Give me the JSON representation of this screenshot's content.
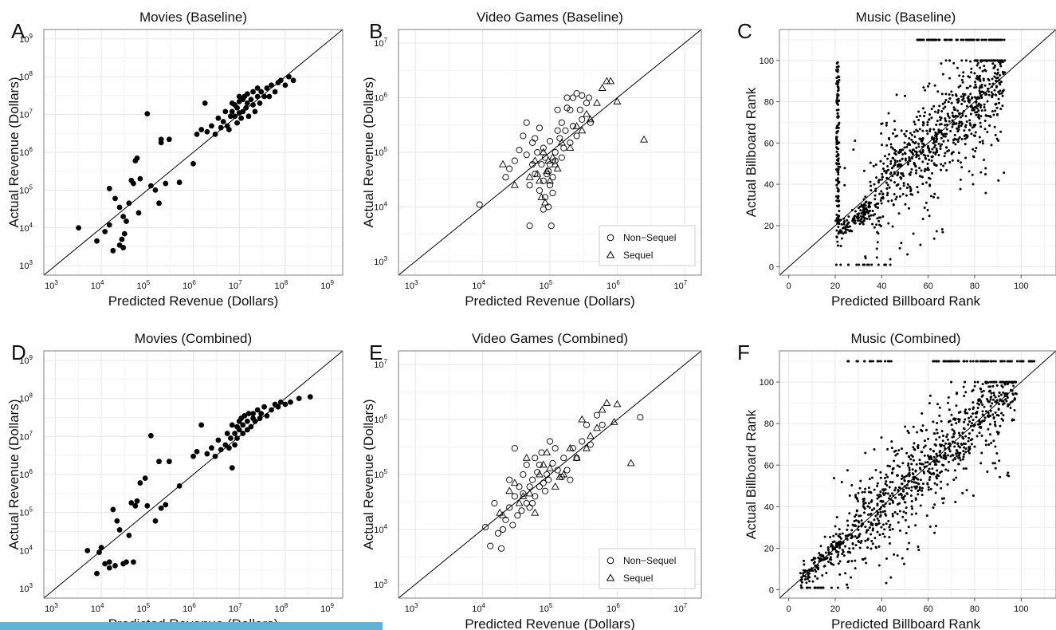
{
  "accent_bar_color": "#5fb3d8",
  "chart_data": [
    {
      "letter": "A",
      "type": "scatter",
      "title": "Movies (Baseline)",
      "xlabel": "Predicted Revenue (Dollars)",
      "ylabel": "Actual Revenue (Dollars)",
      "xscale": "log",
      "yscale": "log",
      "xlim": [
        1000,
        1000000000
      ],
      "ylim": [
        1000,
        1000000000
      ],
      "grid": true,
      "identity_line": true,
      "marker": "filled-circle",
      "series": [
        {
          "x": [
            3200,
            8000,
            12000,
            15000,
            15000,
            18000,
            20000,
            25000,
            25000,
            28000,
            30000,
            30000,
            32000,
            35000,
            40000,
            45000,
            50000,
            55000,
            60000,
            65000,
            70000,
            100000,
            120000,
            150000,
            180000,
            200000,
            200000,
            250000,
            300000,
            500000,
            1000000,
            1200000,
            1500000,
            1800000,
            2000000,
            2500000,
            3000000,
            3500000,
            4000000,
            4500000,
            5000000,
            5500000,
            6000000,
            6500000,
            7000000,
            7000000,
            8000000,
            8000000,
            9000000,
            9000000,
            10000000,
            10000000,
            10000000,
            11000000,
            12000000,
            12000000,
            13000000,
            14000000,
            15000000,
            15000000,
            16000000,
            18000000,
            20000000,
            20000000,
            22000000,
            25000000,
            25000000,
            28000000,
            30000000,
            35000000,
            40000000,
            45000000,
            50000000,
            60000000,
            70000000,
            80000000,
            100000000,
            120000000,
            150000000
          ],
          "y": [
            10000,
            4500,
            8000,
            12000,
            110000,
            2500,
            60000,
            35000,
            3500,
            5000,
            20000,
            3000,
            7000,
            15000,
            45000,
            180000,
            150000,
            600000,
            700000,
            25000,
            200000,
            10500000,
            130000,
            100000,
            45000,
            1800000,
            2200000,
            150000,
            2200000,
            160000,
            500000,
            3000000,
            4000000,
            20000000,
            3500000,
            5000000,
            3000000,
            8000000,
            4500000,
            6500000,
            12000000,
            5000000,
            4000000,
            9000000,
            12000000,
            20000000,
            18000000,
            9000000,
            15000000,
            6000000,
            22000000,
            30000000,
            11000000,
            8000000,
            25000000,
            12000000,
            30000000,
            15000000,
            20000000,
            35000000,
            9000000,
            25000000,
            40000000,
            18000000,
            12000000,
            30000000,
            50000000,
            20000000,
            40000000,
            30000000,
            50000000,
            30000000,
            60000000,
            40000000,
            70000000,
            80000000,
            60000000,
            100000000,
            80000000
          ]
        }
      ]
    },
    {
      "letter": "B",
      "type": "scatter",
      "title": "Video Games (Baseline)",
      "xlabel": "Predicted Revenue (Dollars)",
      "ylabel": "Actual Revenue (Dollars)",
      "xscale": "log",
      "yscale": "log",
      "xlim": [
        1000,
        10000000
      ],
      "ylim": [
        1000,
        10000000
      ],
      "grid": true,
      "identity_line": true,
      "legend": "bottom-right",
      "series": [
        {
          "name": "Non−Sequel",
          "marker": "open-circle",
          "x": [
            9000,
            22000,
            25000,
            30000,
            35000,
            40000,
            45000,
            45000,
            50000,
            50000,
            55000,
            55000,
            60000,
            60000,
            65000,
            70000,
            70000,
            75000,
            80000,
            80000,
            80000,
            85000,
            85000,
            90000,
            95000,
            95000,
            100000,
            100000,
            100000,
            105000,
            110000,
            110000,
            120000,
            120000,
            130000,
            130000,
            140000,
            150000,
            150000,
            160000,
            170000,
            180000,
            180000,
            200000,
            200000,
            220000,
            220000,
            250000,
            250000,
            280000,
            300000,
            300000,
            350000,
            380000,
            400000
          ],
          "y": [
            11000,
            35000,
            50000,
            70000,
            110000,
            200000,
            90000,
            350000,
            25000,
            4500,
            60000,
            150000,
            40000,
            180000,
            100000,
            20000,
            280000,
            60000,
            30000,
            120000,
            9000,
            15000,
            80000,
            40000,
            10000,
            45000,
            60000,
            25000,
            160000,
            4500,
            18000,
            35000,
            70000,
            100000,
            250000,
            600000,
            180000,
            80000,
            350000,
            120000,
            250000,
            650000,
            1000000,
            150000,
            600000,
            1000000,
            300000,
            200000,
            1200000,
            600000,
            400000,
            1100000,
            800000,
            1000000,
            350000
          ]
        },
        {
          "name": "Sequel",
          "marker": "open-triangle",
          "x": [
            20000,
            30000,
            50000,
            60000,
            65000,
            70000,
            75000,
            80000,
            85000,
            90000,
            95000,
            100000,
            110000,
            120000,
            130000,
            150000,
            200000,
            250000,
            300000,
            350000,
            400000,
            500000,
            600000,
            700000,
            800000,
            1000000,
            2500000
          ],
          "y": [
            60000,
            25000,
            35000,
            70000,
            40000,
            30000,
            15000,
            100000,
            12000,
            45000,
            70000,
            30000,
            80000,
            60000,
            50000,
            150000,
            120000,
            300000,
            250000,
            500000,
            400000,
            800000,
            1500000,
            2000000,
            2000000,
            850000,
            170000
          ]
        }
      ]
    },
    {
      "letter": "C",
      "type": "scatter",
      "title": "Music (Baseline)",
      "xlabel": "Predicted Billboard Rank",
      "ylabel": "Actual Billboard Rank",
      "xlim": [
        -4,
        115
      ],
      "ylim": [
        -4,
        115
      ],
      "xticks": [
        0,
        20,
        40,
        60,
        80,
        100
      ],
      "yticks": [
        0,
        20,
        40,
        60,
        80,
        100
      ],
      "grid": true,
      "identity_line": true,
      "marker": "small-dot",
      "description_points": "about 1200 points; dense band along identity from rank 20 upward; vertical streak at x≈21 for y 20–100; row of points at y=110 for x 55–93"
    },
    {
      "letter": "D",
      "type": "scatter",
      "title": "Movies (Combined)",
      "xlabel": "Predicted Revenue (Dollars)",
      "ylabel": "Actual Revenue (Dollars)",
      "xscale": "log",
      "yscale": "log",
      "xlim": [
        1000,
        1000000000
      ],
      "ylim": [
        1000,
        1000000000
      ],
      "grid": true,
      "identity_line": true,
      "marker": "filled-circle",
      "series": [
        {
          "x": [
            5000,
            8000,
            9000,
            10000,
            12000,
            15000,
            15000,
            18000,
            20000,
            22000,
            25000,
            30000,
            35000,
            40000,
            45000,
            50000,
            55000,
            60000,
            70000,
            90000,
            100000,
            120000,
            150000,
            180000,
            200000,
            250000,
            300000,
            500000,
            1000000,
            1200000,
            1500000,
            2000000,
            2500000,
            3000000,
            3500000,
            4000000,
            5000000,
            5500000,
            6000000,
            6500000,
            7000000,
            7000000,
            8000000,
            8000000,
            9000000,
            9000000,
            10000000,
            10000000,
            11000000,
            12000000,
            12000000,
            13000000,
            15000000,
            15000000,
            16000000,
            18000000,
            20000000,
            20000000,
            22000000,
            25000000,
            28000000,
            30000000,
            35000000,
            40000000,
            50000000,
            60000000,
            70000000,
            80000000,
            100000000,
            130000000,
            200000000,
            350000000
          ],
          "y": [
            10000,
            2500,
            9000,
            12000,
            4500,
            5000,
            3500,
            120000,
            4000,
            60000,
            35000,
            4500,
            5000,
            25000,
            180000,
            5000,
            150000,
            200000,
            600000,
            800000,
            150000,
            10500000,
            60000,
            2200000,
            130000,
            160000,
            2200000,
            500000,
            3000000,
            4000000,
            20000000,
            3500000,
            5000000,
            3000000,
            8000000,
            4500000,
            6000000,
            12000000,
            5000000,
            9000000,
            1500000,
            20000000,
            12000000,
            6000000,
            18000000,
            9000000,
            25000000,
            15000000,
            30000000,
            12000000,
            20000000,
            35000000,
            15000000,
            25000000,
            40000000,
            18000000,
            30000000,
            40000000,
            25000000,
            50000000,
            30000000,
            40000000,
            60000000,
            35000000,
            50000000,
            70000000,
            60000000,
            80000000,
            70000000,
            80000000,
            100000000,
            110000000
          ]
        }
      ]
    },
    {
      "letter": "E",
      "type": "scatter",
      "title": "Video Games (Combined)",
      "xlabel": "Predicted Revenue (Dollars)",
      "ylabel": "Actual Revenue (Dollars)",
      "xscale": "log",
      "yscale": "log",
      "xlim": [
        1000,
        10000000
      ],
      "ylim": [
        1000,
        10000000
      ],
      "grid": true,
      "identity_line": true,
      "legend": "bottom-right",
      "series": [
        {
          "name": "Non−Sequel",
          "marker": "open-circle",
          "x": [
            11000,
            13000,
            15000,
            17000,
            19000,
            20000,
            22000,
            25000,
            25000,
            28000,
            30000,
            30000,
            33000,
            35000,
            38000,
            40000,
            40000,
            45000,
            45000,
            50000,
            50000,
            55000,
            55000,
            60000,
            60000,
            65000,
            70000,
            70000,
            75000,
            80000,
            85000,
            90000,
            95000,
            100000,
            110000,
            120000,
            130000,
            150000,
            160000,
            180000,
            200000,
            220000,
            250000,
            300000,
            350000,
            400000,
            500000,
            600000,
            2200000
          ],
          "y": [
            11000,
            5000,
            30000,
            8500,
            4500,
            10000,
            15000,
            25000,
            80000,
            12000,
            40000,
            300000,
            18000,
            60000,
            22000,
            45000,
            100000,
            30000,
            150000,
            25000,
            60000,
            80000,
            30000,
            40000,
            200000,
            110000,
            60000,
            150000,
            250000,
            70000,
            50000,
            100000,
            80000,
            400000,
            160000,
            300000,
            120000,
            90000,
            200000,
            120000,
            80000,
            300000,
            200000,
            400000,
            800000,
            350000,
            1200000,
            800000,
            1100000
          ]
        },
        {
          "name": "Sequel",
          "marker": "open-triangle",
          "x": [
            18000,
            20000,
            25000,
            30000,
            35000,
            40000,
            45000,
            50000,
            60000,
            70000,
            80000,
            90000,
            100000,
            120000,
            140000,
            160000,
            200000,
            250000,
            300000,
            350000,
            400000,
            500000,
            600000,
            700000,
            900000,
            1000000,
            1600000
          ],
          "y": [
            20000,
            18000,
            50000,
            70000,
            30000,
            40000,
            200000,
            45000,
            20000,
            100000,
            150000,
            250000,
            130000,
            60000,
            90000,
            100000,
            300000,
            200000,
            1000000,
            300000,
            500000,
            700000,
            1500000,
            2000000,
            900000,
            1900000,
            160000
          ]
        }
      ]
    },
    {
      "letter": "F",
      "type": "scatter",
      "title": "Music (Combined)",
      "xlabel": "Predicted Billboard Rank",
      "ylabel": "Actual Billboard Rank",
      "xlim": [
        -4,
        115
      ],
      "ylim": [
        -4,
        115
      ],
      "xticks": [
        0,
        20,
        40,
        60,
        80,
        100
      ],
      "yticks": [
        0,
        20,
        40,
        60,
        80,
        100
      ],
      "grid": true,
      "identity_line": true,
      "marker": "small-dot",
      "description_points": "about 1200 points; dense band along identity from rank 0 upward; row of points at y=110 for x 25–105"
    }
  ]
}
